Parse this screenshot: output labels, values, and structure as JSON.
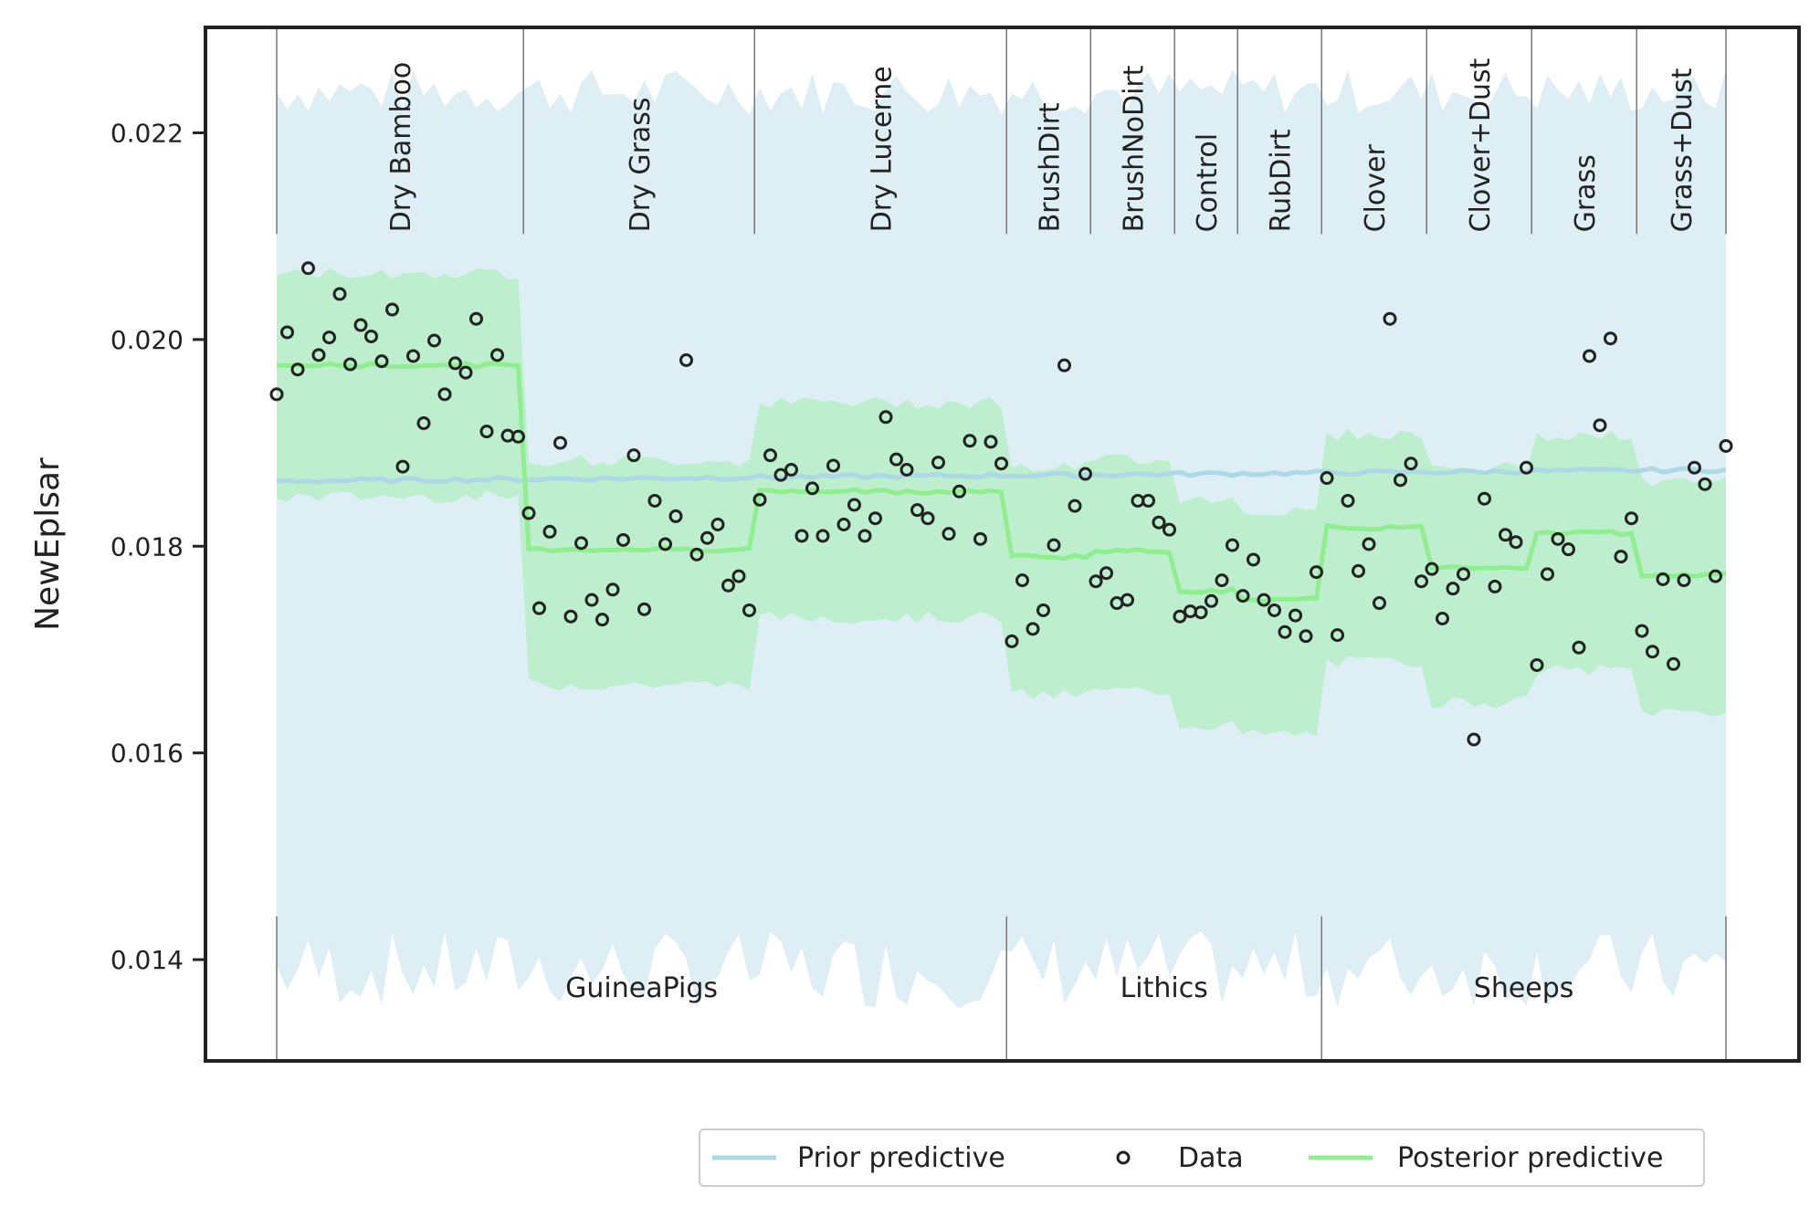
{
  "chart_data": {
    "type": "scatter",
    "ylabel": "NewEplsar",
    "xlabel": "",
    "ylim": [
      0.01302,
      0.02302
    ],
    "yticks": [
      "0.014",
      "0.016",
      "0.018",
      "0.020",
      "0.022"
    ],
    "groups": [
      {
        "name": "GuineaPigs",
        "subgroups": [
          {
            "name": "Dry Bamboo",
            "n": 24
          },
          {
            "name": "Dry Grass",
            "n": 22
          },
          {
            "name": "Dry Lucerne",
            "n": 24
          }
        ]
      },
      {
        "name": "Lithics",
        "subgroups": [
          {
            "name": "BrushDirt",
            "n": 8
          },
          {
            "name": "BrushNoDirt",
            "n": 8
          },
          {
            "name": "Control",
            "n": 6
          },
          {
            "name": "RubDirt",
            "n": 8
          }
        ]
      },
      {
        "name": "Sheeps",
        "subgroups": [
          {
            "name": "Clover",
            "n": 10
          },
          {
            "name": "Clover+Dust",
            "n": 10
          },
          {
            "name": "Grass",
            "n": 10
          },
          {
            "name": "Grass+Dust",
            "n": 9
          }
        ]
      }
    ],
    "data_points": [
      0.01947,
      0.02007,
      0.01971,
      0.02069,
      0.01985,
      0.02002,
      0.02044,
      0.01976,
      0.02014,
      0.02003,
      0.01979,
      0.02029,
      0.01877,
      0.01984,
      0.01919,
      0.01999,
      0.01947,
      0.01977,
      0.01968,
      0.0202,
      0.01911,
      0.01985,
      0.01907,
      0.01906,
      0.01832,
      0.0174,
      0.01814,
      0.019,
      0.01732,
      0.01803,
      0.01748,
      0.01729,
      0.01758,
      0.01806,
      0.01888,
      0.01739,
      0.01844,
      0.01802,
      0.01829,
      0.0198,
      0.01792,
      0.01808,
      0.01821,
      0.01762,
      0.01771,
      0.01738,
      0.01845,
      0.01888,
      0.01869,
      0.01874,
      0.0181,
      0.01856,
      0.0181,
      0.01878,
      0.01821,
      0.0184,
      0.0181,
      0.01827,
      0.01925,
      0.01884,
      0.01874,
      0.01835,
      0.01827,
      0.01881,
      0.01812,
      0.01853,
      0.01902,
      0.01807,
      0.01901,
      0.0188,
      0.01708,
      0.01767,
      0.0172,
      0.01738,
      0.01801,
      0.01975,
      0.01839,
      0.0187,
      0.01766,
      0.01774,
      0.01745,
      0.01748,
      0.01844,
      0.01844,
      0.01823,
      0.01816,
      0.01732,
      0.01737,
      0.01736,
      0.01747,
      0.01767,
      0.01801,
      0.01752,
      0.01787,
      0.01748,
      0.01738,
      0.01717,
      0.01733,
      0.01713,
      0.01775,
      0.01866,
      0.01714,
      0.01844,
      0.01776,
      0.01802,
      0.01745,
      0.0202,
      0.01864,
      0.0188,
      0.01766,
      0.01778,
      0.0173,
      0.01759,
      0.01773,
      0.01613,
      0.01846,
      0.01761,
      0.01811,
      0.01804,
      0.01876,
      0.01685,
      0.01773,
      0.01807,
      0.01797,
      0.01702,
      0.01984,
      0.01917,
      0.02001,
      0.0179,
      0.01827,
      0.01718,
      0.01698,
      0.01768,
      0.01686,
      0.01767,
      0.01876,
      0.0186,
      0.01771,
      0.01897
    ],
    "posterior_mean": [
      0.01975,
      0.01797,
      0.01853,
      0.0179,
      0.01795,
      0.01757,
      0.01748,
      0.01818,
      0.0178,
      0.01813,
      0.01772
    ],
    "posterior_band": [
      [
        0.01848,
        0.02064
      ],
      [
        0.01666,
        0.01883
      ],
      [
        0.01731,
        0.01939
      ],
      [
        0.01656,
        0.01876
      ],
      [
        0.0166,
        0.01885
      ],
      [
        0.01627,
        0.01846
      ],
      [
        0.01618,
        0.01834
      ],
      [
        0.01688,
        0.01908
      ],
      [
        0.01649,
        0.01876
      ],
      [
        0.0168,
        0.01906
      ],
      [
        0.0164,
        0.01862
      ]
    ],
    "prior_mean_range": [
      0.01863,
      0.01874
    ],
    "prior_band": [
      0.0139,
      0.0224
    ],
    "legend": {
      "placement": "bottom-center",
      "entries": [
        "Prior predictive",
        "Data",
        "Posterior predictive"
      ]
    },
    "colors": {
      "prior": "#add8e6",
      "prior_band": "#deeef5",
      "posterior": "#90ee90",
      "posterior_band": "#bdeecd",
      "data_edge": "#222222",
      "axis": "#222222",
      "separator": "#777777"
    }
  }
}
